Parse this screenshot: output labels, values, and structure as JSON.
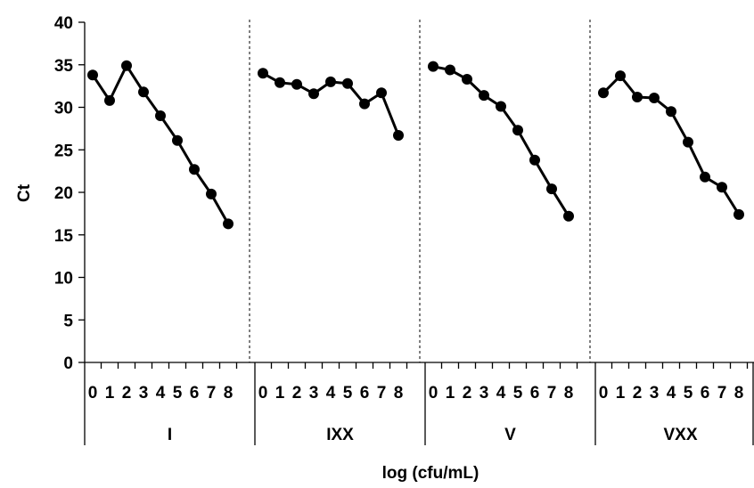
{
  "chart_data": {
    "type": "line",
    "xlabel": "log (cfu/mL)",
    "ylabel": "Ct",
    "ylim": [
      0,
      40
    ],
    "yticks": [
      0,
      5,
      10,
      15,
      20,
      25,
      30,
      35,
      40
    ],
    "x_ticks": [
      "0",
      "1",
      "2",
      "3",
      "4",
      "5",
      "6",
      "7",
      "8"
    ],
    "grid": false,
    "legend": "none",
    "line_color": "#000000",
    "groups": [
      {
        "label": "I",
        "values": [
          33.8,
          30.8,
          34.9,
          31.8,
          29.0,
          26.1,
          22.7,
          19.8,
          16.3
        ]
      },
      {
        "label": "IXX",
        "values": [
          34.0,
          32.9,
          32.7,
          31.6,
          33.0,
          32.8,
          30.4,
          31.7,
          26.7
        ]
      },
      {
        "label": "V",
        "values": [
          34.8,
          34.4,
          33.3,
          31.4,
          30.1,
          27.3,
          23.8,
          20.4,
          17.2
        ]
      },
      {
        "label": "VXX",
        "values": [
          31.7,
          33.7,
          31.2,
          31.1,
          29.5,
          25.9,
          21.8,
          20.6,
          17.4
        ]
      }
    ]
  }
}
